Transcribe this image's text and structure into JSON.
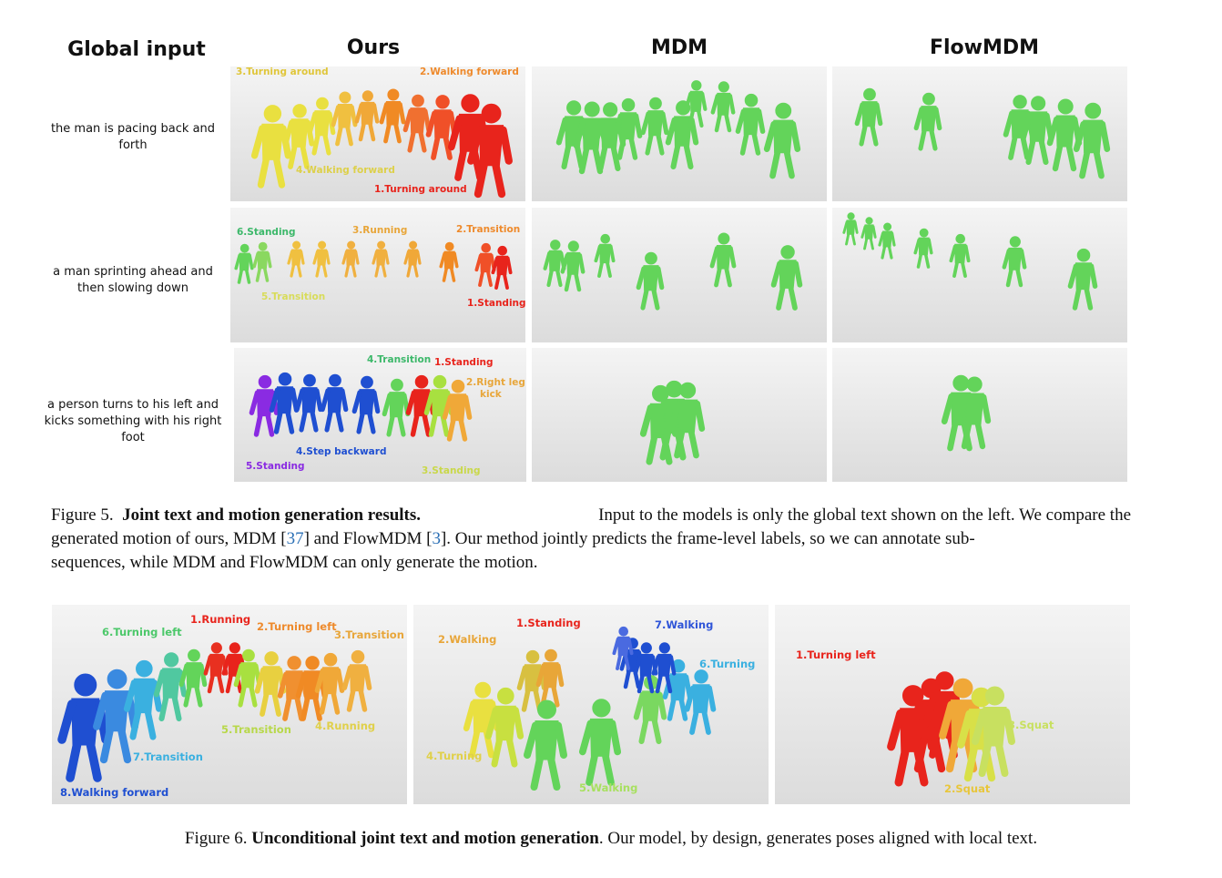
{
  "headers": {
    "global_input": "Global input",
    "ours": "Ours",
    "mdm": "MDM",
    "flowmdm": "FlowMDM"
  },
  "prompts": [
    "the man is pacing back and forth",
    "a man sprinting ahead and then slowing down",
    "a person turns to his left and kicks something with his right foot"
  ],
  "row1_labels": {
    "l3": "3.Turning around",
    "l2": "2.Walking forward",
    "l4": "4.Walking forward",
    "l1": "1.Turning around"
  },
  "row2_labels": {
    "l6": "6.Standing",
    "l3": "3.Running",
    "l2": "2.Transition",
    "l5": "5.Transition",
    "l1": "1.Standing"
  },
  "row3_labels": {
    "l4": "4.Transition",
    "l1": "1.Standing",
    "l2a": "2.Right leg",
    "l2b": "kick",
    "l4b": "4.Step backward",
    "l5": "5.Standing",
    "l3": "3.Standing"
  },
  "fig5": {
    "label": "Figure 5.",
    "bold": "Joint text and motion generation results.",
    "t1": "Input to the models is only the global text shown on the left.  We compare the",
    "t2a": "generated motion of ours, MDM [",
    "ref1": "37",
    "t2b": "] and FlowMDM [",
    "ref2": "3",
    "t2c": "].  Our method jointly predicts the frame-level labels, so we can annotate sub-",
    "t3": "sequences, while MDM and FlowMDM can only generate the motion."
  },
  "fig6_panel1": {
    "l1": "1.Running",
    "l6": "6.Turning left",
    "l2": "2.Turning left",
    "l3": "3.Transition",
    "l5": "5.Transition",
    "l4": "4.Running",
    "l7": "7.Transition",
    "l8": "8.Walking forward"
  },
  "fig6_panel2": {
    "l1": "1.Standing",
    "l7": "7.Walking",
    "l2": "2.Walking",
    "l6": "6.Turning",
    "l4": "4.Turning",
    "l5": "5.Walking"
  },
  "fig6_panel3": {
    "l1": "1.Turning left",
    "l3": "3.Squat",
    "l2": "2.Squat"
  },
  "fig6": {
    "label": "Figure 6.",
    "bold": "Unconditional joint text and motion generation",
    "rest": ". Our model, by design, generates poses aligned with local text."
  },
  "colors": {
    "red": "#e8241c",
    "orange": "#f08a24",
    "yellow": "#e9e040",
    "green": "#63d45a",
    "blue": "#1f4fd1",
    "purple": "#8a2be2",
    "cyan": "#3ab0e0"
  }
}
